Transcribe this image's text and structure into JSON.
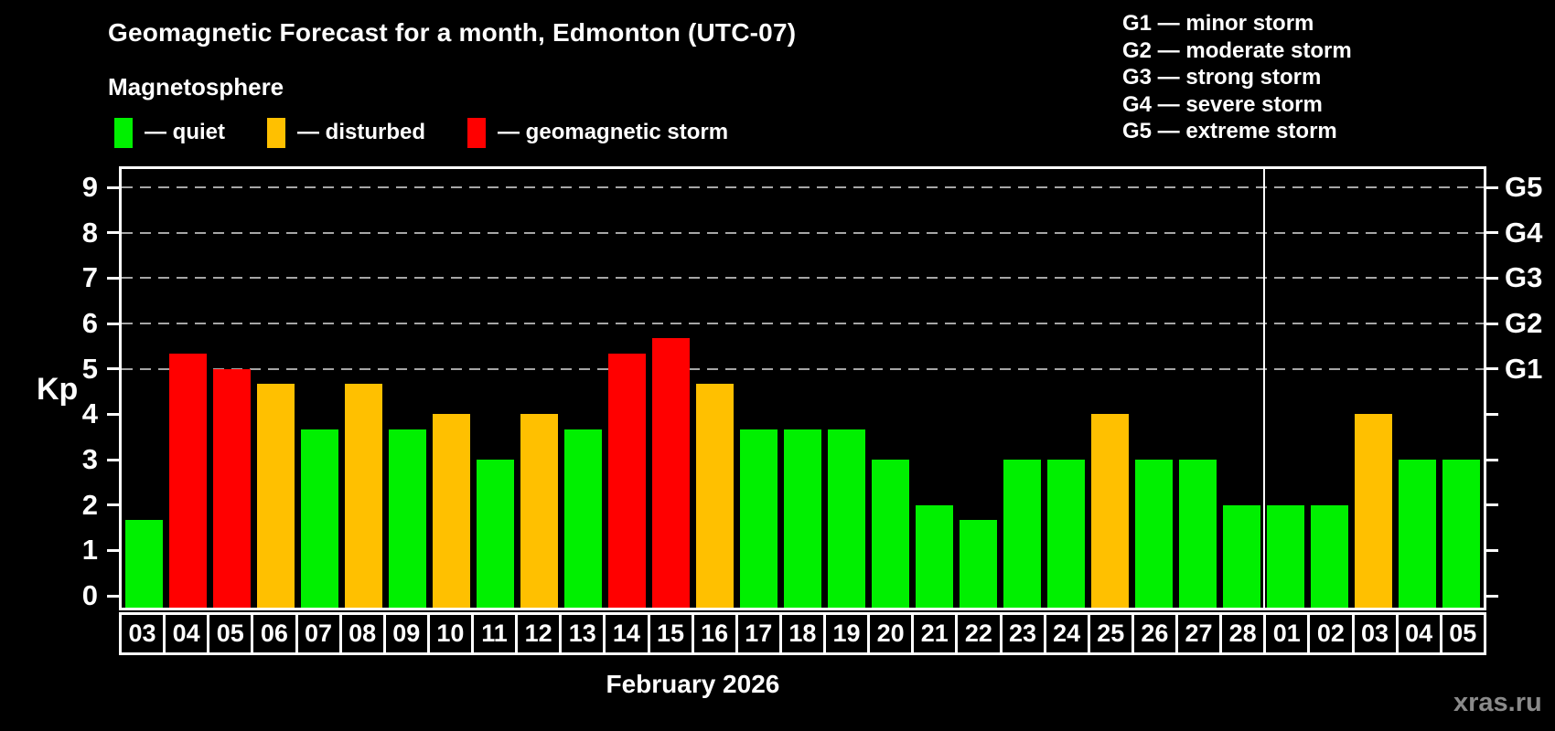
{
  "title": "Geomagnetic Forecast for a month, Edmonton (UTC-07)",
  "magnetosphere_legend": {
    "heading": "Magnetosphere",
    "items": [
      {
        "label": "— quiet",
        "status": "quiet",
        "color": "#00F000"
      },
      {
        "label": "— disturbed",
        "status": "disturbed",
        "color": "#FFC000"
      },
      {
        "label": "— geomagnetic storm",
        "status": "storm",
        "color": "#FF0000"
      }
    ]
  },
  "g_scale_legend": [
    "G1 — minor storm",
    "G2 — moderate storm",
    "G3 — strong storm",
    "G4 — severe storm",
    "G5 — extreme storm"
  ],
  "watermark": "xras.ru",
  "chart_data": {
    "type": "bar",
    "title": "Geomagnetic Forecast for a month, Edmonton (UTC-07)",
    "xlabel": "February 2026",
    "ylabel": "Kp",
    "ylim": [
      0,
      9
    ],
    "yticks": [
      0,
      1,
      2,
      3,
      4,
      5,
      6,
      7,
      8,
      9
    ],
    "gridlines_at": [
      5,
      6,
      7,
      8,
      9
    ],
    "right_axis_labels": {
      "5": "G1",
      "6": "G2",
      "7": "G3",
      "8": "G4",
      "9": "G5"
    },
    "legend_position": "top-left",
    "grid": "dashed horizontal at storm levels only",
    "categories": [
      "03",
      "04",
      "05",
      "06",
      "07",
      "08",
      "09",
      "10",
      "11",
      "12",
      "13",
      "14",
      "15",
      "16",
      "17",
      "18",
      "19",
      "20",
      "21",
      "22",
      "23",
      "24",
      "25",
      "26",
      "27",
      "28",
      "01",
      "02",
      "03",
      "04",
      "05"
    ],
    "values": [
      1.67,
      5.33,
      5.0,
      4.67,
      3.67,
      4.67,
      3.67,
      4.0,
      3.0,
      4.0,
      3.67,
      5.33,
      5.67,
      4.67,
      3.67,
      3.67,
      3.67,
      3.0,
      2.0,
      1.67,
      3.0,
      3.0,
      4.0,
      3.0,
      3.0,
      2.0,
      2.0,
      2.0,
      4.0,
      3.0,
      3.0
    ],
    "statuses": [
      "quiet",
      "storm",
      "storm",
      "disturbed",
      "quiet",
      "disturbed",
      "quiet",
      "disturbed",
      "quiet",
      "disturbed",
      "quiet",
      "storm",
      "storm",
      "disturbed",
      "quiet",
      "quiet",
      "quiet",
      "quiet",
      "quiet",
      "quiet",
      "quiet",
      "quiet",
      "disturbed",
      "quiet",
      "quiet",
      "quiet",
      "quiet",
      "quiet",
      "disturbed",
      "quiet",
      "quiet"
    ],
    "status_colors": {
      "quiet": "#00F000",
      "disturbed": "#FFC000",
      "storm": "#FF0000"
    },
    "month_divider_after_index": 25
  }
}
